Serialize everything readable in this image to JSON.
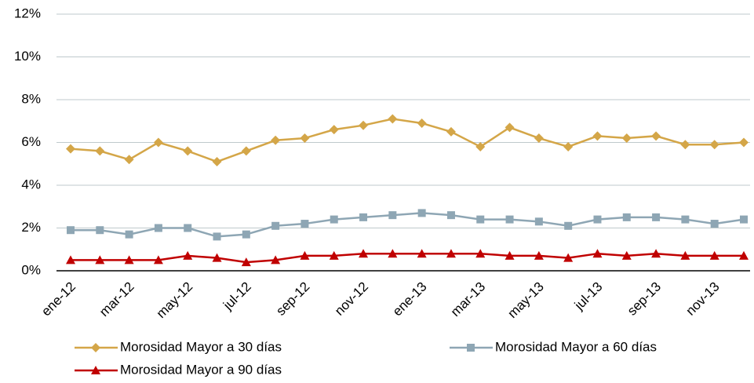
{
  "chart_data": {
    "type": "line",
    "categories": [
      "ene-12",
      null,
      "mar-12",
      null,
      "may-12",
      null,
      "jul-12",
      null,
      "sep-12",
      null,
      "nov-12",
      null,
      "ene-13",
      null,
      "mar-13",
      null,
      "may-13",
      null,
      "jul-13",
      null,
      "sep-13",
      null,
      "nov-13",
      null
    ],
    "series": [
      {
        "name": "Morosidad Mayor a 30 días",
        "color": "#d4a648",
        "marker": "diamond",
        "values": [
          5.7,
          5.6,
          5.2,
          6.0,
          5.6,
          5.1,
          5.6,
          6.1,
          6.2,
          6.6,
          6.8,
          7.1,
          6.9,
          6.5,
          5.8,
          6.7,
          6.2,
          5.8,
          6.3,
          6.2,
          6.3,
          5.9,
          5.9,
          6.0
        ]
      },
      {
        "name": "Morosidad Mayor a 60 días",
        "color": "#8ea6b4",
        "marker": "square",
        "values": [
          1.9,
          1.9,
          1.7,
          2.0,
          2.0,
          1.6,
          1.7,
          2.1,
          2.2,
          2.4,
          2.5,
          2.6,
          2.7,
          2.6,
          2.4,
          2.4,
          2.3,
          2.1,
          2.4,
          2.5,
          2.5,
          2.4,
          2.2,
          2.4
        ]
      },
      {
        "name": "Morosidad Mayor a 90 días",
        "color": "#c00000",
        "marker": "triangle",
        "values": [
          0.5,
          0.5,
          0.5,
          0.5,
          0.7,
          0.6,
          0.4,
          0.5,
          0.7,
          0.7,
          0.8,
          0.8,
          0.8,
          0.8,
          0.8,
          0.7,
          0.7,
          0.6,
          0.8,
          0.7,
          0.8,
          0.7,
          0.7,
          0.7
        ]
      }
    ],
    "ylim": [
      0,
      12
    ],
    "yticks": [
      {
        "value": 0,
        "label": "0%"
      },
      {
        "value": 2,
        "label": "2%"
      },
      {
        "value": 4,
        "label": "4%"
      },
      {
        "value": 6,
        "label": "6%"
      },
      {
        "value": 8,
        "label": "8%"
      },
      {
        "value": 10,
        "label": "10%"
      },
      {
        "value": 12,
        "label": "12%"
      }
    ],
    "grid": true,
    "legend": "bottom"
  }
}
